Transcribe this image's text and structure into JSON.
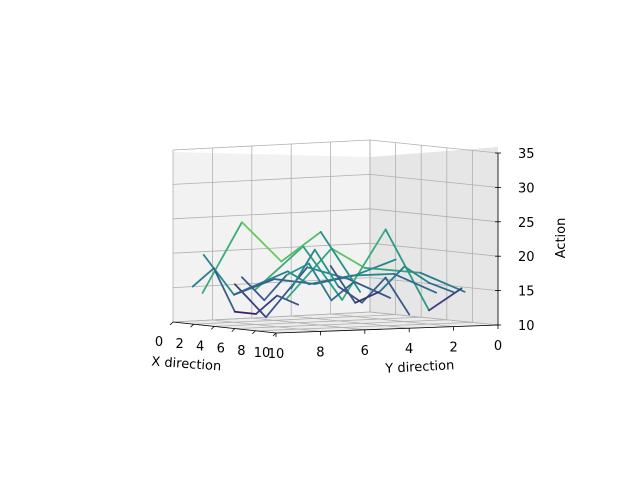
{
  "chart_data": {
    "type": "line",
    "projection": "3d",
    "plot_style": "wireframe",
    "colormap": "viridis",
    "xlabel": "X direction",
    "ylabel": "Y direction",
    "zlabel": "Action",
    "xlim": [
      0,
      10
    ],
    "ylim": [
      0,
      10
    ],
    "zlim": [
      10,
      35
    ],
    "grid": true,
    "legend": "none",
    "x_ticks": [
      "0",
      "2",
      "4",
      "6",
      "8",
      "10"
    ],
    "y_ticks": [
      "0",
      "2",
      "4",
      "6",
      "8",
      "10"
    ],
    "z_ticks": [
      "10",
      "15",
      "20",
      "25",
      "30",
      "35"
    ],
    "series": [
      {
        "values": [
          [
            10,
            9.5,
            15
          ],
          [
            10,
            7.5,
            22
          ],
          [
            10,
            6,
            19
          ],
          [
            10,
            3.5,
            18
          ],
          [
            10,
            1.5,
            15
          ]
        ]
      },
      {
        "values": [
          [
            8,
            10,
            16
          ],
          [
            8,
            7.8,
            22
          ],
          [
            8,
            6,
            14
          ],
          [
            8,
            4,
            24
          ],
          [
            8,
            2,
            12
          ],
          [
            8,
            0.5,
            15
          ]
        ]
      },
      {
        "values": [
          [
            6,
            10,
            15
          ],
          [
            6,
            7.5,
            18
          ],
          [
            6,
            6.5,
            16
          ],
          [
            6,
            4.5,
            17
          ],
          [
            6,
            2.5,
            17
          ],
          [
            6,
            0.5,
            14
          ]
        ]
      },
      {
        "values": [
          [
            4,
            9,
            16
          ],
          [
            4,
            7.5,
            11
          ],
          [
            4,
            5.5,
            18
          ],
          [
            4,
            3.5,
            16
          ],
          [
            4,
            1.5,
            13
          ]
        ]
      },
      {
        "values": [
          [
            2,
            9.5,
            20
          ],
          [
            2,
            8,
            14
          ],
          [
            2,
            6,
            16
          ],
          [
            2,
            4,
            15
          ],
          [
            2,
            2,
            16
          ],
          [
            2,
            0,
            18
          ]
        ]
      },
      {
        "values": [
          [
            0,
            8.5,
            14
          ],
          [
            0,
            6.5,
            24
          ],
          [
            0,
            4.5,
            18
          ],
          [
            0,
            2.5,
            22
          ],
          [
            0,
            0.5,
            13
          ]
        ]
      },
      {
        "values": [
          [
            0,
            9,
            15
          ],
          [
            2,
            9,
            18
          ],
          [
            4,
            9,
            12
          ],
          [
            6,
            9,
            12
          ],
          [
            8,
            9,
            15
          ],
          [
            10,
            9,
            14
          ]
        ]
      },
      {
        "values": [
          [
            0,
            6.5,
            16
          ],
          [
            2,
            6.5,
            13
          ],
          [
            4,
            6.5,
            17
          ],
          [
            6,
            6.5,
            19
          ],
          [
            8,
            6.5,
            14
          ],
          [
            10,
            6.5,
            17
          ]
        ]
      },
      {
        "values": [
          [
            0,
            4,
            14
          ],
          [
            2,
            4,
            20
          ],
          [
            4,
            4,
            15
          ],
          [
            6,
            4,
            13
          ],
          [
            8,
            4,
            17
          ],
          [
            10,
            4,
            12
          ]
        ]
      },
      {
        "values": [
          [
            0,
            2,
            17
          ],
          [
            2,
            2,
            12
          ],
          [
            4,
            2,
            14
          ],
          [
            6,
            2,
            18
          ],
          [
            8,
            2,
            16
          ],
          [
            10,
            2,
            15
          ]
        ]
      }
    ]
  }
}
